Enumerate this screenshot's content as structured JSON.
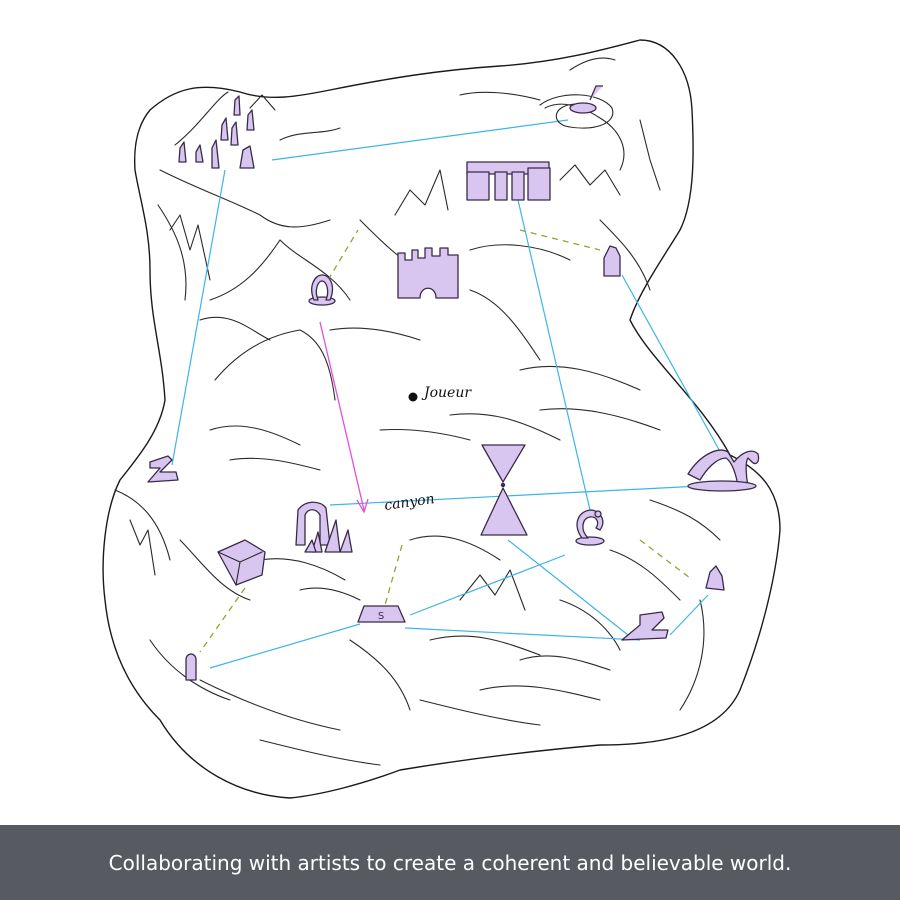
{
  "map": {
    "player_label": "Joueur",
    "canyon_label": "canyon",
    "colors": {
      "landmark_fill": "#d9c6f0",
      "route_line": "#3db4e8",
      "trail_line": "#8aa82a",
      "player_path": "#e64ed8",
      "ink": "#1a1a1a"
    },
    "landmarks": [
      {
        "name": "menhir-field",
        "icon": "standing-stones-icon"
      },
      {
        "name": "spiral-altar",
        "icon": "altar-icon"
      },
      {
        "name": "stone-temple",
        "icon": "temple-icon"
      },
      {
        "name": "castle",
        "icon": "castle-icon"
      },
      {
        "name": "ring-shrine",
        "icon": "ring-shrine-icon"
      },
      {
        "name": "watchtower-north",
        "icon": "small-tower-icon"
      },
      {
        "name": "z-rune-west",
        "icon": "z-rune-icon"
      },
      {
        "name": "crystal-portal",
        "icon": "portal-icon"
      },
      {
        "name": "hourglass-obelisk",
        "icon": "hourglass-icon"
      },
      {
        "name": "orb-shrine",
        "icon": "orb-icon"
      },
      {
        "name": "stone-arch",
        "icon": "arch-icon"
      },
      {
        "name": "cube-ruin",
        "icon": "cube-icon"
      },
      {
        "name": "s-plinth",
        "icon": "plinth-icon",
        "glyph": "S"
      },
      {
        "name": "pillar-south",
        "icon": "pillar-icon"
      },
      {
        "name": "z-rune-east",
        "icon": "z-rune-icon"
      },
      {
        "name": "crystal-post",
        "icon": "small-tower-icon"
      }
    ]
  },
  "caption": {
    "text": "Collaborating with artists to create a coherent and believable world."
  }
}
